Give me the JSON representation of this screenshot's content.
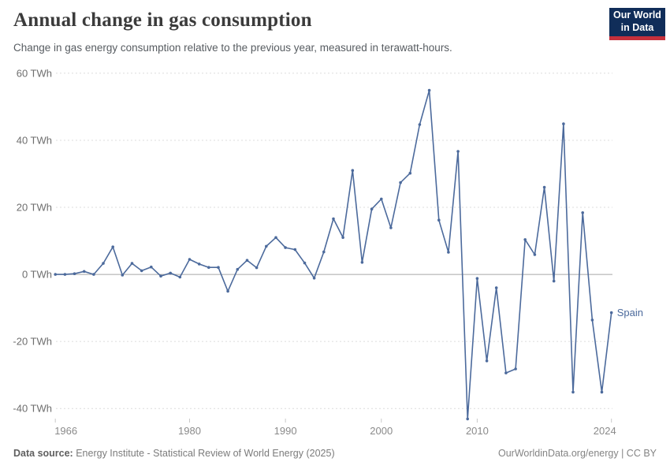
{
  "header": {
    "title": "Annual change in gas consumption",
    "subtitle": "Change in gas energy consumption relative to the previous year, measured in terawatt-hours.",
    "logo": {
      "line1": "Our World",
      "line2": "in Data"
    }
  },
  "chart_data": {
    "type": "line",
    "title": "Annual change in gas consumption",
    "entity": "Spain",
    "unit": "TWh",
    "xlim": [
      1966,
      2024
    ],
    "ylim": [
      -45,
      60
    ],
    "grid": "horizontal-dashed",
    "legend_position": "end-of-line-label",
    "x_ticks": [
      1966,
      1980,
      1990,
      2000,
      2010,
      2024
    ],
    "y_ticks": [
      {
        "value": 60,
        "label": "60 TWh"
      },
      {
        "value": 40,
        "label": "40 TWh"
      },
      {
        "value": 20,
        "label": "20 TWh"
      },
      {
        "value": 0,
        "label": "0 TWh"
      },
      {
        "value": -20,
        "label": "-20 TWh"
      },
      {
        "value": -40,
        "label": "-40 TWh"
      }
    ],
    "x": [
      1966,
      1967,
      1968,
      1969,
      1970,
      1971,
      1972,
      1973,
      1974,
      1975,
      1976,
      1977,
      1978,
      1979,
      1980,
      1981,
      1982,
      1983,
      1984,
      1985,
      1986,
      1987,
      1988,
      1989,
      1990,
      1991,
      1992,
      1993,
      1994,
      1995,
      1996,
      1997,
      1998,
      1999,
      2000,
      2001,
      2002,
      2003,
      2004,
      2005,
      2006,
      2007,
      2008,
      2009,
      2010,
      2011,
      2012,
      2013,
      2014,
      2015,
      2016,
      2017,
      2018,
      2019,
      2020,
      2021,
      2022,
      2023,
      2024
    ],
    "series": [
      {
        "name": "Spain",
        "values": [
          0.0,
          0.0,
          0.2,
          0.9,
          0.0,
          3.3,
          8.2,
          -0.2,
          3.3,
          1.1,
          2.2,
          -0.5,
          0.4,
          -0.8,
          4.5,
          3.1,
          2.1,
          2.1,
          -5.0,
          1.5,
          4.2,
          2.0,
          8.4,
          11.0,
          8.0,
          7.4,
          3.4,
          -1.1,
          6.7,
          16.6,
          11.0,
          31.0,
          3.6,
          19.5,
          22.5,
          13.9,
          27.4,
          30.2,
          44.7,
          54.9,
          16.2,
          6.6,
          36.7,
          -43.1,
          -1.2,
          -25.8,
          -4.0,
          -29.4,
          -28.2,
          10.4,
          5.9,
          26.0,
          -2.0,
          44.9,
          -35.1,
          18.4,
          -13.6,
          -35.1,
          -11.4
        ]
      }
    ]
  },
  "colors": {
    "line": "#4c6a9c",
    "grid": "#dcdcdc",
    "zero_line": "#a6a6a6",
    "y_axis_text": "#6e6e6e",
    "x_axis_text": "#8a8a8a",
    "tick_mark": "#c9c9c9",
    "logo_bg": "#102d59",
    "logo_red": "#c5303c"
  },
  "footer": {
    "datasource_label": "Data source:",
    "datasource": "Energy Institute - Statistical Review of World Energy (2025)",
    "credit": "OurWorldinData.org/energy | CC BY"
  }
}
